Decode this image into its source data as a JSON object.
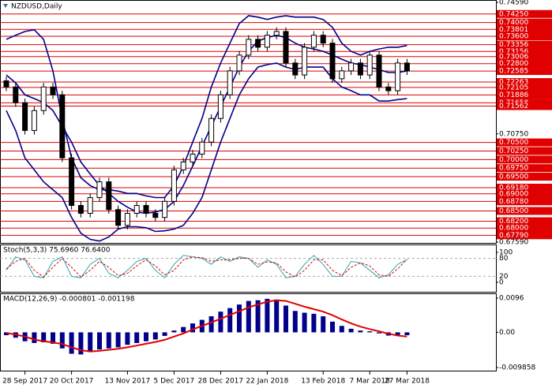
{
  "chart_data": [
    {
      "type": "candlestick",
      "title": "NZDUSD,Daily",
      "color": "#000000",
      "open": [
        0.723,
        0.7212,
        0.7166,
        0.7085,
        0.7143,
        0.7212,
        0.7189,
        0.7005,
        0.6866,
        0.6843,
        0.6889,
        0.6935,
        0.6854,
        0.6808,
        0.6843,
        0.6866,
        0.6843,
        0.6831,
        0.6878,
        0.697,
        0.6993,
        0.7016,
        0.7051,
        0.712,
        0.7189,
        0.7259,
        0.7305,
        0.7351,
        0.7328,
        0.7363,
        0.7374,
        0.7282,
        0.7247,
        0.7328,
        0.7363,
        0.734,
        0.7236,
        0.7259,
        0.7282,
        0.7247,
        0.7305,
        0.7212,
        0.7201,
        0.7282
      ],
      "high": [
        0.7242,
        0.7224,
        0.7178,
        0.7155,
        0.7224,
        0.7224,
        0.7201,
        0.7017,
        0.6878,
        0.6901,
        0.6947,
        0.6947,
        0.6866,
        0.6855,
        0.6878,
        0.6878,
        0.6855,
        0.689,
        0.6982,
        0.7005,
        0.7028,
        0.7063,
        0.7132,
        0.7201,
        0.7271,
        0.7317,
        0.7363,
        0.7363,
        0.7375,
        0.7386,
        0.7386,
        0.7294,
        0.734,
        0.7375,
        0.7375,
        0.7352,
        0.7271,
        0.7294,
        0.7294,
        0.7317,
        0.7317,
        0.7224,
        0.7294,
        0.7294
      ],
      "low": [
        0.72,
        0.7154,
        0.7073,
        0.7073,
        0.7131,
        0.7177,
        0.6993,
        0.6854,
        0.6831,
        0.6831,
        0.6877,
        0.6842,
        0.6796,
        0.6796,
        0.6831,
        0.6831,
        0.6819,
        0.6819,
        0.6866,
        0.6958,
        0.6981,
        0.7004,
        0.7039,
        0.7108,
        0.7177,
        0.7247,
        0.7293,
        0.7316,
        0.7316,
        0.7351,
        0.727,
        0.7235,
        0.7235,
        0.7316,
        0.7328,
        0.7224,
        0.7224,
        0.7247,
        0.7235,
        0.7235,
        0.72,
        0.7189,
        0.7189,
        0.7247
      ],
      "close": [
        0.7212,
        0.7166,
        0.7085,
        0.7143,
        0.7212,
        0.7189,
        0.7005,
        0.6866,
        0.6843,
        0.6889,
        0.6935,
        0.6854,
        0.6808,
        0.6843,
        0.6866,
        0.6843,
        0.6831,
        0.6878,
        0.697,
        0.6993,
        0.7016,
        0.7051,
        0.712,
        0.7189,
        0.7259,
        0.7305,
        0.7351,
        0.7328,
        0.7363,
        0.7374,
        0.7282,
        0.7247,
        0.7328,
        0.7363,
        0.734,
        0.7236,
        0.7259,
        0.7282,
        0.7247,
        0.7305,
        0.7212,
        0.7201,
        0.7282,
        0.7259
      ],
      "bands": {
        "color": "#00008b",
        "upper": [
          0.7351,
          0.7363,
          0.7374,
          0.7379,
          0.7351,
          0.7259,
          0.712,
          0.7005,
          0.6947,
          0.6924,
          0.6912,
          0.6912,
          0.6908,
          0.6901,
          0.6901,
          0.6894,
          0.6889,
          0.6889,
          0.6924,
          0.6981,
          0.7051,
          0.712,
          0.7212,
          0.7282,
          0.734,
          0.7397,
          0.742,
          0.7416,
          0.7409,
          0.7416,
          0.742,
          0.7416,
          0.7416,
          0.7416,
          0.7409,
          0.7386,
          0.734,
          0.7316,
          0.7305,
          0.7316,
          0.7323,
          0.7328,
          0.7328,
          0.7333
        ],
        "middle": [
          0.7247,
          0.7224,
          0.7189,
          0.7178,
          0.7166,
          0.7143,
          0.7097,
          0.7051,
          0.6993,
          0.6958,
          0.6924,
          0.6901,
          0.6878,
          0.6861,
          0.6847,
          0.6843,
          0.6847,
          0.6854,
          0.6878,
          0.6924,
          0.6981,
          0.7039,
          0.7097,
          0.7155,
          0.7212,
          0.727,
          0.7316,
          0.7346,
          0.7356,
          0.7363,
          0.7356,
          0.734,
          0.7328,
          0.7323,
          0.7316,
          0.7305,
          0.7293,
          0.7282,
          0.7277,
          0.727,
          0.7263,
          0.7254,
          0.7254,
          0.7259
        ],
        "lower": [
          0.7143,
          0.7085,
          0.7005,
          0.697,
          0.6935,
          0.6912,
          0.6889,
          0.6831,
          0.6785,
          0.6767,
          0.6762,
          0.6774,
          0.6797,
          0.6804,
          0.6804,
          0.6801,
          0.679,
          0.6792,
          0.6797,
          0.6808,
          0.6843,
          0.6889,
          0.697,
          0.7051,
          0.712,
          0.7189,
          0.7236,
          0.727,
          0.7277,
          0.7282,
          0.727,
          0.7263,
          0.727,
          0.727,
          0.727,
          0.7236,
          0.7212,
          0.7201,
          0.7189,
          0.7189,
          0.7171,
          0.7171,
          0.7175,
          0.7178
        ]
      },
      "level_color": "#e00000",
      "levels": [
        {
          "value": 0.7425,
          "label": "0.74250"
        },
        {
          "value": 0.74,
          "label": "0.74000"
        },
        {
          "value": 0.73801,
          "label": "0.73801"
        },
        {
          "value": 0.736,
          "label": "0.73600"
        },
        {
          "value": 0.73356,
          "label": "0.73356"
        },
        {
          "value": 0.73156,
          "label": "0.73156"
        },
        {
          "value": 0.73006,
          "label": "0.73006"
        },
        {
          "value": 0.728,
          "label": "0.72800"
        },
        {
          "value": 0.72585,
          "label": "0.72585"
        },
        {
          "value": 0.72263,
          "label": "0.72263"
        },
        {
          "value": 0.72105,
          "label": "0.72105"
        },
        {
          "value": 0.71886,
          "label": "0.71886"
        },
        {
          "value": 0.71658,
          "label": "0.71658"
        },
        {
          "value": 0.71562,
          "label": "0.71562"
        },
        {
          "value": 0.705,
          "label": "0.70500"
        },
        {
          "value": 0.7025,
          "label": "0.70250"
        },
        {
          "value": 0.7,
          "label": "0.70000"
        },
        {
          "value": 0.6975,
          "label": "0.69750"
        },
        {
          "value": 0.695,
          "label": "0.69500"
        },
        {
          "value": 0.6918,
          "label": "0.69180"
        },
        {
          "value": 0.69,
          "label": "0.69000"
        },
        {
          "value": 0.6878,
          "label": "0.68780"
        },
        {
          "value": 0.685,
          "label": "0.68500"
        },
        {
          "value": 0.682,
          "label": "0.68200"
        },
        {
          "value": 0.68,
          "label": "0.68000"
        },
        {
          "value": 0.6779,
          "label": "0.67790"
        }
      ],
      "ylim": [
        0.6759,
        0.7459
      ],
      "yticks": [
        {
          "value": 0.7459,
          "label": "0.74590"
        },
        {
          "value": 0.7075,
          "label": "0.70750"
        },
        {
          "value": 0.6759,
          "label": "0.67590"
        }
      ]
    },
    {
      "type": "line",
      "title": "Stoch(5,3,3) 75.6960 76.6400",
      "series": [
        {
          "color": "#2aa6b8",
          "values": [
            40,
            85,
            75,
            20,
            15,
            70,
            85,
            20,
            15,
            60,
            80,
            30,
            15,
            40,
            70,
            80,
            40,
            15,
            60,
            90,
            85,
            80,
            60,
            85,
            70,
            85,
            80,
            50,
            75,
            60,
            15,
            20,
            60,
            90,
            60,
            20,
            20,
            70,
            65,
            40,
            15,
            25,
            60,
            75.696
          ]
        },
        {
          "color": "#e00000",
          "dash": true,
          "values": [
            45,
            70,
            80,
            40,
            18,
            50,
            80,
            50,
            18,
            40,
            70,
            50,
            22,
            30,
            55,
            75,
            55,
            25,
            40,
            75,
            85,
            82,
            70,
            75,
            75,
            80,
            80,
            60,
            68,
            65,
            35,
            18,
            40,
            75,
            75,
            40,
            22,
            50,
            65,
            55,
            25,
            20,
            45,
            76.64
          ]
        }
      ],
      "ylim": [
        0,
        100
      ],
      "yticks": [
        100,
        0
      ],
      "levels": [
        80,
        20
      ]
    },
    {
      "type": "bar",
      "title": "MACD(12,26,9) -0.000801 -0.001198",
      "categories": [
        null,
        null,
        "28 Sep 2017",
        null,
        null,
        null,
        null,
        "20 Oct 2017",
        null,
        null,
        null,
        null,
        null,
        "13 Nov 2017",
        null,
        null,
        null,
        null,
        "5 Dec 2017",
        null,
        null,
        null,
        null,
        "28 Dec 2017",
        null,
        null,
        null,
        null,
        "22 Jan 2018",
        null,
        null,
        null,
        null,
        null,
        "13 Feb 2018",
        null,
        null,
        null,
        null,
        "7 Mar 2018",
        null,
        null,
        null,
        "27 Mar 2018"
      ],
      "series": [
        {
          "type": "bar",
          "color": "#00008b",
          "values": [
            -0.0008,
            -0.0015,
            -0.0025,
            -0.003,
            -0.0028,
            -0.0032,
            -0.0045,
            -0.006,
            -0.0062,
            -0.0055,
            -0.0048,
            -0.0045,
            -0.0042,
            -0.0035,
            -0.003,
            -0.0025,
            -0.002,
            -0.001,
            0.0005,
            0.0015,
            0.0025,
            0.0035,
            0.0045,
            0.0058,
            0.0068,
            0.0078,
            0.0088,
            0.009,
            0.0094,
            0.0092,
            0.0075,
            0.006,
            0.0055,
            0.0052,
            0.0045,
            0.003,
            0.0018,
            0.001,
            0.0005,
            0.0003,
            -0.0003,
            -0.0009,
            -0.0008,
            -0.000801
          ]
        },
        {
          "type": "line",
          "color": "#e00000",
          "values": [
            -0.0002,
            -0.0006,
            -0.0012,
            -0.002,
            -0.0025,
            -0.0028,
            -0.0033,
            -0.0042,
            -0.005,
            -0.0054,
            -0.0052,
            -0.0049,
            -0.0046,
            -0.0042,
            -0.0037,
            -0.0032,
            -0.0027,
            -0.0021,
            -0.0012,
            -0.0003,
            0.0008,
            0.0018,
            0.0028,
            0.0038,
            0.0049,
            0.0059,
            0.007,
            0.0078,
            0.0086,
            0.009,
            0.0088,
            0.008,
            0.0072,
            0.0065,
            0.0058,
            0.0048,
            0.0036,
            0.0025,
            0.0016,
            0.0009,
            0.0003,
            -0.0004,
            -0.0009,
            -0.001198
          ]
        }
      ],
      "ylim": [
        -0.009858,
        0.0096
      ],
      "yticks": [
        0.0096,
        {
          "value": 0,
          "label": "0.00"
        },
        -0.009858
      ]
    }
  ]
}
